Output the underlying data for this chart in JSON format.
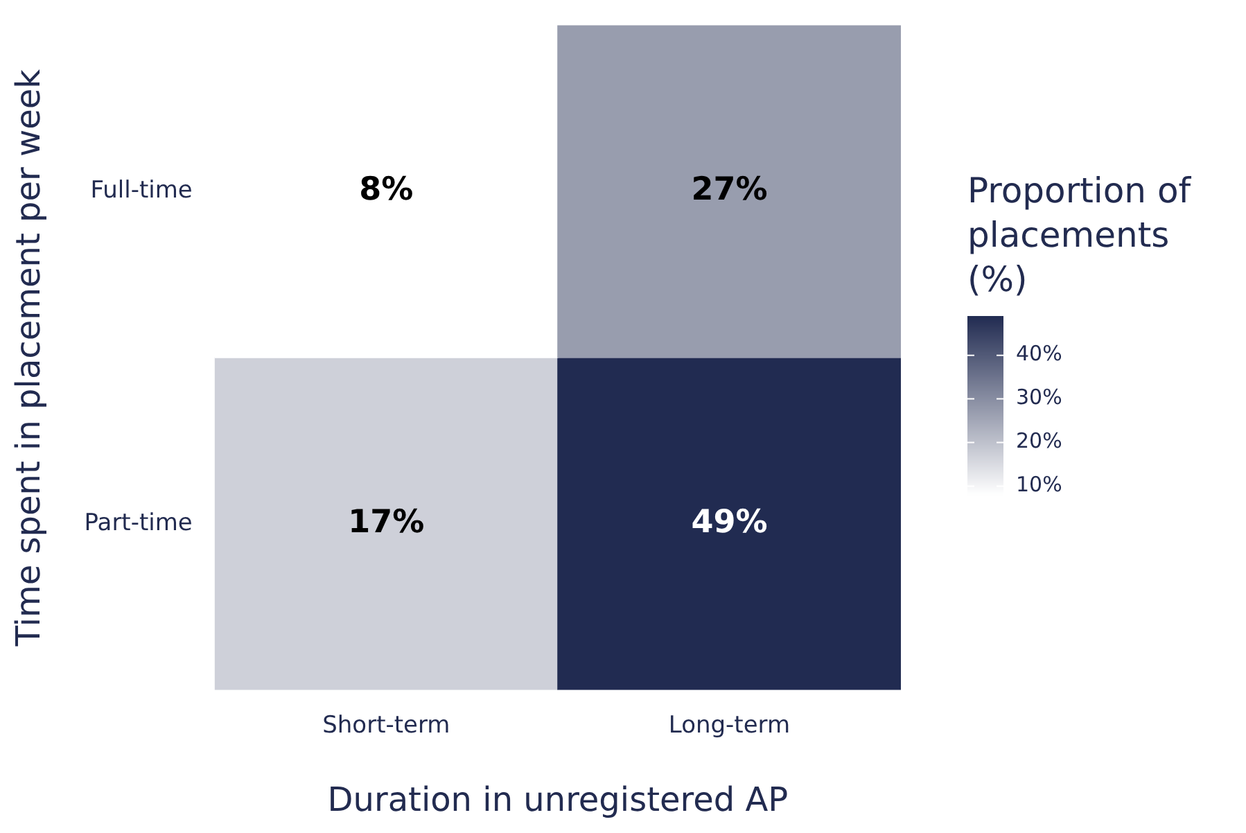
{
  "chart_data": {
    "type": "heatmap",
    "xlabel": "Duration in unregistered AP",
    "ylabel": "Time spent in placement per week",
    "clabel": "Proportion of placements (%)",
    "categories": [
      "Short-term",
      "Long-term"
    ],
    "y_categories": [
      "Full-time",
      "Part-time"
    ],
    "cells": [
      [
        8,
        27
      ],
      [
        17,
        49
      ]
    ],
    "cell_labels": [
      [
        "8%",
        "27%"
      ],
      [
        "17%",
        "49%"
      ]
    ],
    "clim": [
      8,
      49
    ],
    "cticks": [
      {
        "value": 10,
        "label": "10%"
      },
      {
        "value": 20,
        "label": "20%"
      },
      {
        "value": 30,
        "label": "30%"
      },
      {
        "value": 40,
        "label": "40%"
      }
    ]
  }
}
